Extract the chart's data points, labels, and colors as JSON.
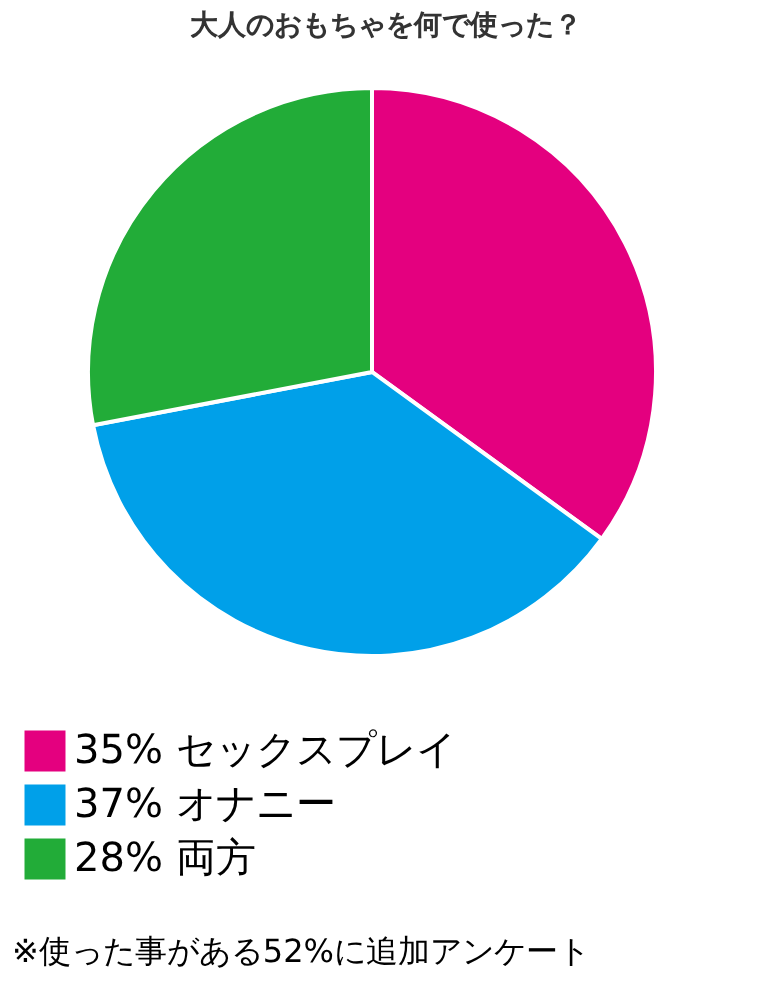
{
  "chart_data": {
    "type": "pie",
    "title": "大人のおもちゃを何で使った？",
    "categories": [
      "セックスプレイ",
      "オナニー",
      "両方"
    ],
    "values": [
      35,
      37,
      28
    ],
    "value_labels": [
      "35%",
      "37%",
      "28%"
    ],
    "colors": [
      "#e4007f",
      "#00a0e9",
      "#22ac38"
    ],
    "legend": "bottom",
    "annotations": [
      "※使った事がある52%に追加アンケート"
    ]
  }
}
